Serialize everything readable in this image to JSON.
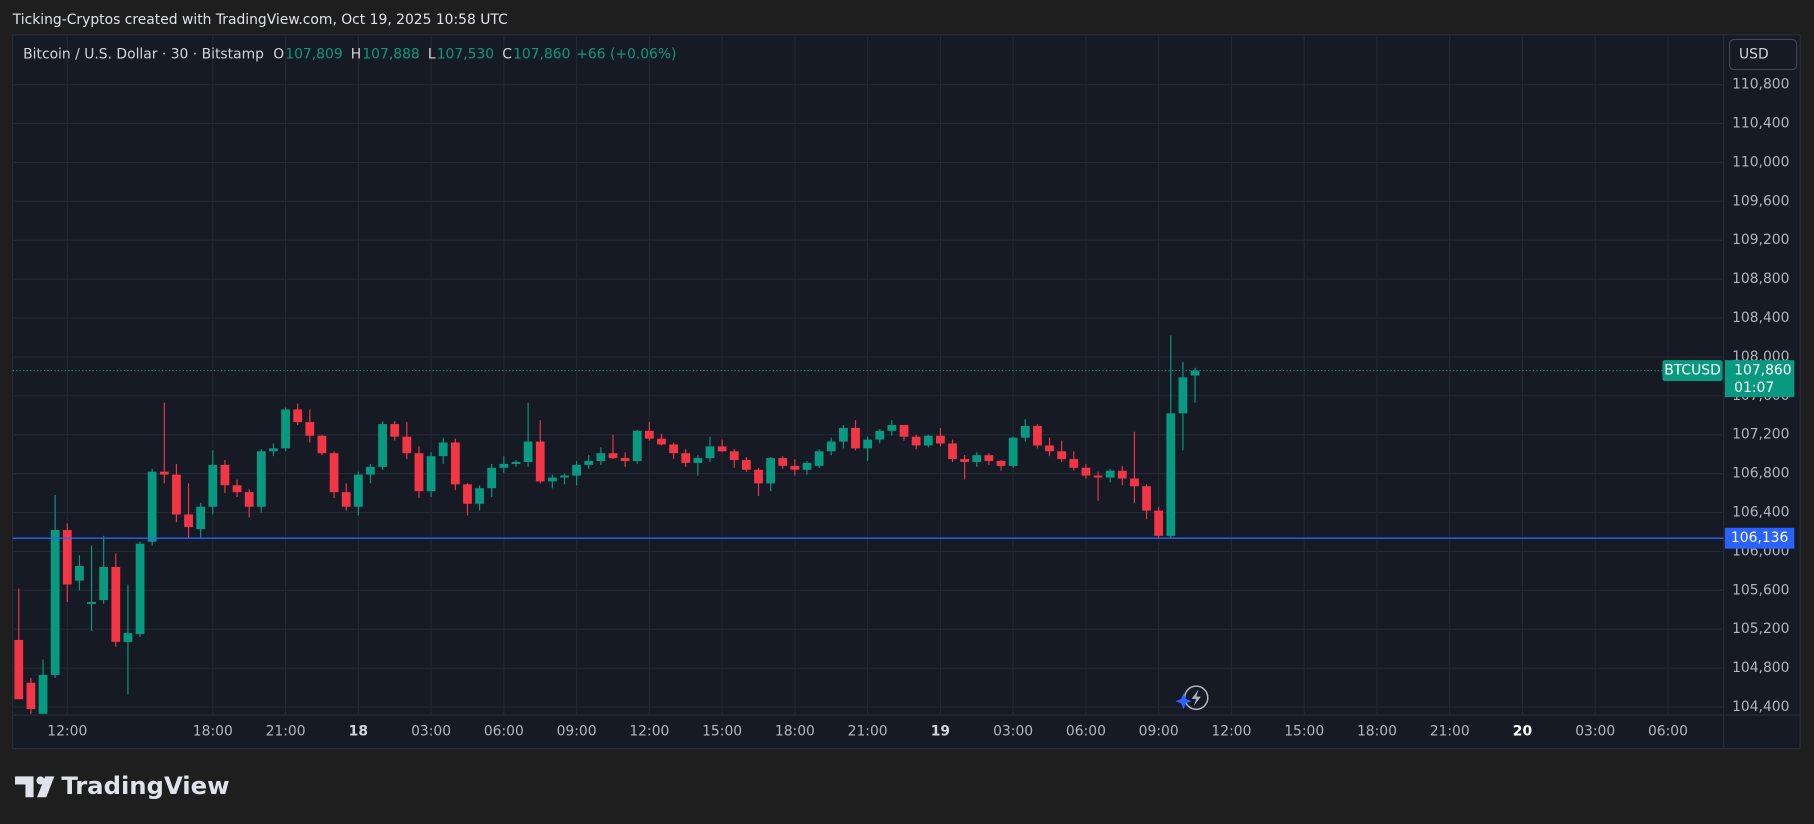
{
  "header": "Ticking-Cryptos created with TradingView.com, Oct 19, 2025 10:58 UTC",
  "chart_data": {
    "type": "candlestick",
    "symbol_title": "Bitcoin / U.S. Dollar · 30 · Bitstamp",
    "ohlc_letters": [
      "O",
      "H",
      "L",
      "C"
    ],
    "last_labels": [
      "107,809",
      "107,888",
      "107,530",
      "107,860"
    ],
    "change_label": "+66 (+0.06%)",
    "currency": "USD",
    "symbol_tag": "BTCUSD",
    "countdown": "01:07",
    "up_color": "#089981",
    "down_color": "#f23645",
    "grid": true,
    "x": [
      10,
      10.5,
      11,
      11.5,
      12,
      12.5,
      13,
      13.5,
      14,
      14.5,
      15,
      15.5,
      16,
      16.5,
      17,
      17.5,
      18,
      18.5,
      19,
      19.5,
      20,
      20.5,
      21,
      21.5,
      22,
      22.5,
      23,
      23.5,
      24,
      24.5,
      25,
      25.5,
      26,
      26.5,
      27,
      27.5,
      28,
      28.5,
      29,
      29.5,
      30,
      30.5,
      31,
      31.5,
      32,
      32.5,
      33,
      33.5,
      34,
      34.5,
      35,
      35.5,
      36,
      36.5,
      37,
      37.5,
      38,
      38.5,
      39,
      39.5,
      40,
      40.5,
      41,
      41.5,
      42,
      42.5,
      43,
      43.5,
      44,
      44.5,
      45,
      45.5,
      46,
      46.5,
      47,
      47.5,
      48,
      48.5,
      49,
      49.5,
      50,
      50.5,
      51,
      51.5,
      52,
      52.5,
      53,
      53.5,
      54,
      54.5,
      55,
      55.5,
      56,
      56.5,
      57,
      57.5,
      58,
      58.5
    ],
    "open": [
      105090,
      104650,
      104330,
      104730,
      106220,
      105700,
      105460,
      105500,
      105840,
      105070,
      105150,
      106100,
      106820,
      106790,
      106380,
      106230,
      106460,
      106890,
      106680,
      106610,
      106460,
      107030,
      107060,
      107460,
      107330,
      107190,
      107010,
      106610,
      106460,
      106790,
      106870,
      107310,
      107180,
      107010,
      106620,
      106980,
      107120,
      106690,
      106490,
      106650,
      106860,
      106900,
      106920,
      107130,
      106720,
      106760,
      106780,
      106890,
      106930,
      107010,
      106960,
      106930,
      107240,
      107160,
      107100,
      107010,
      106910,
      106960,
      107080,
      107030,
      106940,
      106840,
      106700,
      106960,
      106880,
      106840,
      106880,
      107030,
      107130,
      107270,
      107060,
      107150,
      107240,
      107300,
      107180,
      107090,
      107190,
      107110,
      106950,
      106920,
      106990,
      106930,
      106880,
      107170,
      107290,
      107090,
      107030,
      106950,
      106860,
      106780,
      106760,
      106830,
      106750,
      106670,
      106420,
      106160,
      107420,
      107809
    ],
    "high": [
      105620,
      104700,
      104890,
      106580,
      106290,
      105960,
      106060,
      106160,
      105980,
      105660,
      106100,
      106850,
      107530,
      106900,
      106700,
      106500,
      107040,
      106940,
      106740,
      106640,
      107050,
      107110,
      107480,
      107520,
      107460,
      107200,
      107030,
      106700,
      106820,
      106900,
      107340,
      107340,
      107330,
      107080,
      107020,
      107170,
      107160,
      106700,
      106680,
      106900,
      106980,
      106940,
      107530,
      107350,
      106790,
      106800,
      106930,
      106990,
      107070,
      107200,
      107020,
      107250,
      107330,
      107210,
      107120,
      107050,
      106990,
      107180,
      107150,
      107050,
      106970,
      106860,
      106970,
      106980,
      106950,
      106930,
      107050,
      107170,
      107300,
      107350,
      107180,
      107260,
      107350,
      107300,
      107200,
      107200,
      107270,
      107150,
      106990,
      107020,
      107010,
      106940,
      107180,
      107360,
      107310,
      107170,
      107140,
      107030,
      106900,
      106820,
      106850,
      106880,
      107230,
      106690,
      106460,
      108220,
      107950,
      107888
    ],
    "low": [
      104480,
      104330,
      104330,
      104700,
      105480,
      105600,
      105180,
      105460,
      105020,
      104530,
      105120,
      106060,
      106700,
      106300,
      106130,
      106130,
      106380,
      106600,
      106560,
      106350,
      106400,
      106980,
      107030,
      107300,
      107120,
      106990,
      106550,
      106420,
      106370,
      106700,
      106840,
      107140,
      106950,
      106550,
      106560,
      106900,
      106630,
      106370,
      106420,
      106560,
      106810,
      106870,
      106870,
      106700,
      106650,
      106690,
      106680,
      106850,
      106890,
      106950,
      106870,
      106900,
      107140,
      107090,
      106950,
      106870,
      106780,
      106920,
      107020,
      106860,
      106820,
      106570,
      106620,
      106850,
      106780,
      106790,
      106860,
      106990,
      107060,
      107040,
      106930,
      107110,
      107190,
      107140,
      107050,
      107070,
      107080,
      106920,
      106740,
      106870,
      106890,
      106830,
      106860,
      107130,
      107060,
      106980,
      106920,
      106830,
      106750,
      106520,
      106710,
      106680,
      106500,
      106330,
      106136,
      106136,
      107040,
      107530
    ],
    "close": [
      104480,
      104380,
      104730,
      106220,
      105660,
      105850,
      105480,
      105840,
      105070,
      105160,
      106080,
      106820,
      106790,
      106380,
      106250,
      106460,
      106890,
      106680,
      106610,
      106460,
      107030,
      107060,
      107460,
      107330,
      107190,
      107010,
      106610,
      106460,
      106790,
      106870,
      107310,
      107180,
      107010,
      106620,
      106980,
      107120,
      106690,
      106490,
      106650,
      106860,
      106900,
      106920,
      107130,
      106720,
      106760,
      106780,
      106890,
      106930,
      107010,
      106960,
      106930,
      107240,
      107160,
      107100,
      107010,
      106910,
      106960,
      107080,
      107030,
      106940,
      106840,
      106700,
      106960,
      106880,
      106840,
      106910,
      107030,
      107130,
      107270,
      107060,
      107150,
      107240,
      107300,
      107180,
      107090,
      107190,
      107110,
      106950,
      106920,
      106990,
      106930,
      106880,
      107170,
      107290,
      107090,
      107030,
      106950,
      106860,
      106780,
      106760,
      106830,
      106750,
      106670,
      106420,
      106160,
      107420,
      107790,
      107860
    ],
    "xlim": [
      9.75,
      80.3
    ],
    "xticks": [
      {
        "value": 12,
        "label": "12:00"
      },
      {
        "value": 18,
        "label": "18:00"
      },
      {
        "value": 21,
        "label": "21:00"
      },
      {
        "value": 24,
        "label": "18"
      },
      {
        "value": 27,
        "label": "03:00"
      },
      {
        "value": 30,
        "label": "06:00"
      },
      {
        "value": 33,
        "label": "09:00"
      },
      {
        "value": 36,
        "label": "12:00"
      },
      {
        "value": 39,
        "label": "15:00"
      },
      {
        "value": 42,
        "label": "18:00"
      },
      {
        "value": 45,
        "label": "21:00"
      },
      {
        "value": 48,
        "label": "19"
      },
      {
        "value": 51,
        "label": "03:00"
      },
      {
        "value": 54,
        "label": "06:00"
      },
      {
        "value": 57,
        "label": "09:00"
      },
      {
        "value": 60,
        "label": "12:00"
      },
      {
        "value": 63,
        "label": "15:00"
      },
      {
        "value": 66,
        "label": "18:00"
      },
      {
        "value": 69,
        "label": "21:00"
      },
      {
        "value": 72,
        "label": "20"
      },
      {
        "value": 75,
        "label": "03:00"
      },
      {
        "value": 78,
        "label": "06:00"
      }
    ],
    "ylim": [
      104317,
      111312
    ],
    "yticks": [
      {
        "value": 104400,
        "label": "104,400"
      },
      {
        "value": 104800,
        "label": "104,800"
      },
      {
        "value": 105200,
        "label": "105,200"
      },
      {
        "value": 105600,
        "label": "105,600"
      },
      {
        "value": 106000,
        "label": "106,000"
      },
      {
        "value": 106400,
        "label": "106,400"
      },
      {
        "value": 106800,
        "label": "106,800"
      },
      {
        "value": 107200,
        "label": "107,200"
      },
      {
        "value": 107600,
        "label": "107,600"
      },
      {
        "value": 108000,
        "label": "108,000"
      },
      {
        "value": 108400,
        "label": "108,400"
      },
      {
        "value": 108800,
        "label": "108,800"
      },
      {
        "value": 109200,
        "label": "109,200"
      },
      {
        "value": 109600,
        "label": "109,600"
      },
      {
        "value": 110000,
        "label": "110,000"
      },
      {
        "value": 110400,
        "label": "110,400"
      },
      {
        "value": 110800,
        "label": "110,800"
      }
    ],
    "hlines": [
      {
        "value": 106136,
        "label": "106,136",
        "color": "#2962ff"
      }
    ]
  },
  "footer": {
    "logo": "TradingView"
  }
}
